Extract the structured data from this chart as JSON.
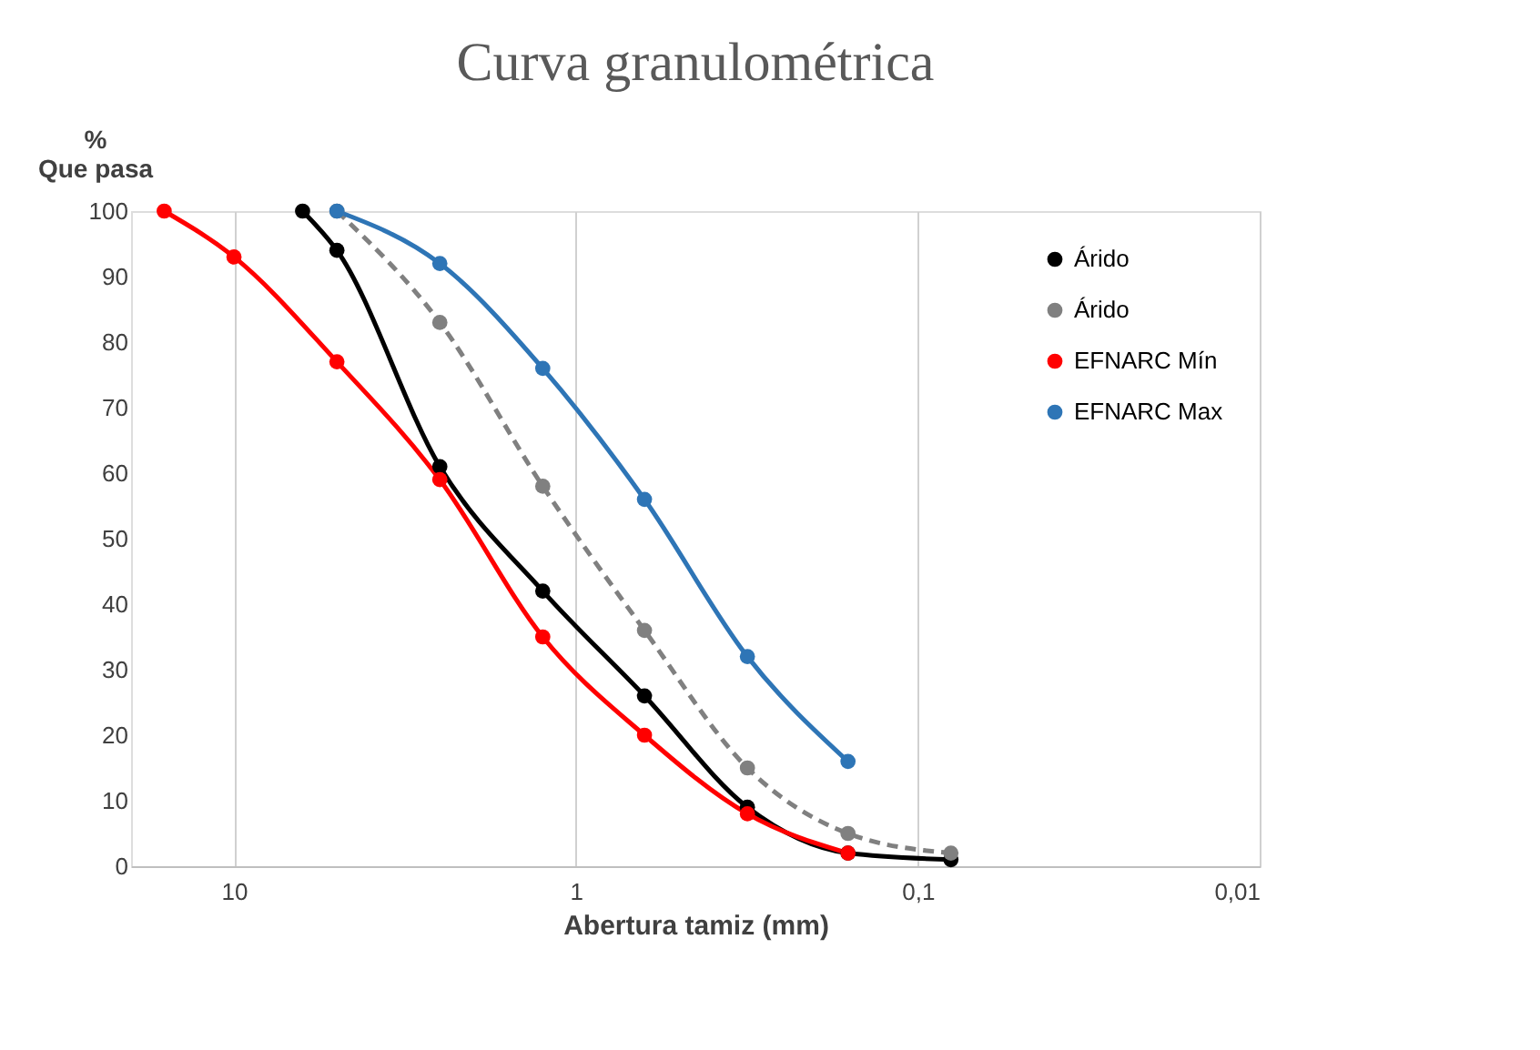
{
  "chart_data": {
    "type": "line",
    "title": "Curva granulométrica",
    "xlabel": "Abertura tamiz (mm)",
    "ylabel": "%\nQue pasa",
    "log": "x",
    "xlim": [
      20,
      0.01
    ],
    "xticks": [
      10,
      1,
      {
        "value": 0.1,
        "label": "0,1"
      },
      {
        "value": 0.01,
        "label": "0,01"
      }
    ],
    "ylim": [
      0,
      100
    ],
    "yticks": [
      0,
      10,
      20,
      30,
      40,
      50,
      60,
      70,
      80,
      90,
      100
    ],
    "grid": "x",
    "legend": "top right",
    "marker": "circle",
    "series": [
      {
        "name": "Árido",
        "color": "#000000",
        "x": [
          6.3,
          5,
          2.5,
          1.25,
          0.63,
          0.315,
          0.16,
          0.08
        ],
        "values": [
          100,
          94,
          61,
          42,
          26,
          9,
          2,
          1
        ]
      },
      {
        "name": "Árido",
        "color": "#808080",
        "line_style": "dashed",
        "x": [
          5,
          2.5,
          1.25,
          0.63,
          0.315,
          0.16,
          0.08
        ],
        "values": [
          100,
          83,
          58,
          36,
          15,
          5,
          2
        ]
      },
      {
        "name": "EFNARC Mín",
        "color": "#ff0000",
        "x": [
          16,
          10,
          5,
          2.5,
          1.25,
          0.63,
          0.315,
          0.16
        ],
        "values": [
          100,
          93,
          77,
          59,
          35,
          20,
          8,
          2
        ]
      },
      {
        "name": "EFNARC Max",
        "color": "#2e75b6",
        "x": [
          5,
          2.5,
          1.25,
          0.63,
          0.315,
          0.16
        ],
        "values": [
          100,
          92,
          76,
          56,
          32,
          16
        ]
      }
    ]
  }
}
